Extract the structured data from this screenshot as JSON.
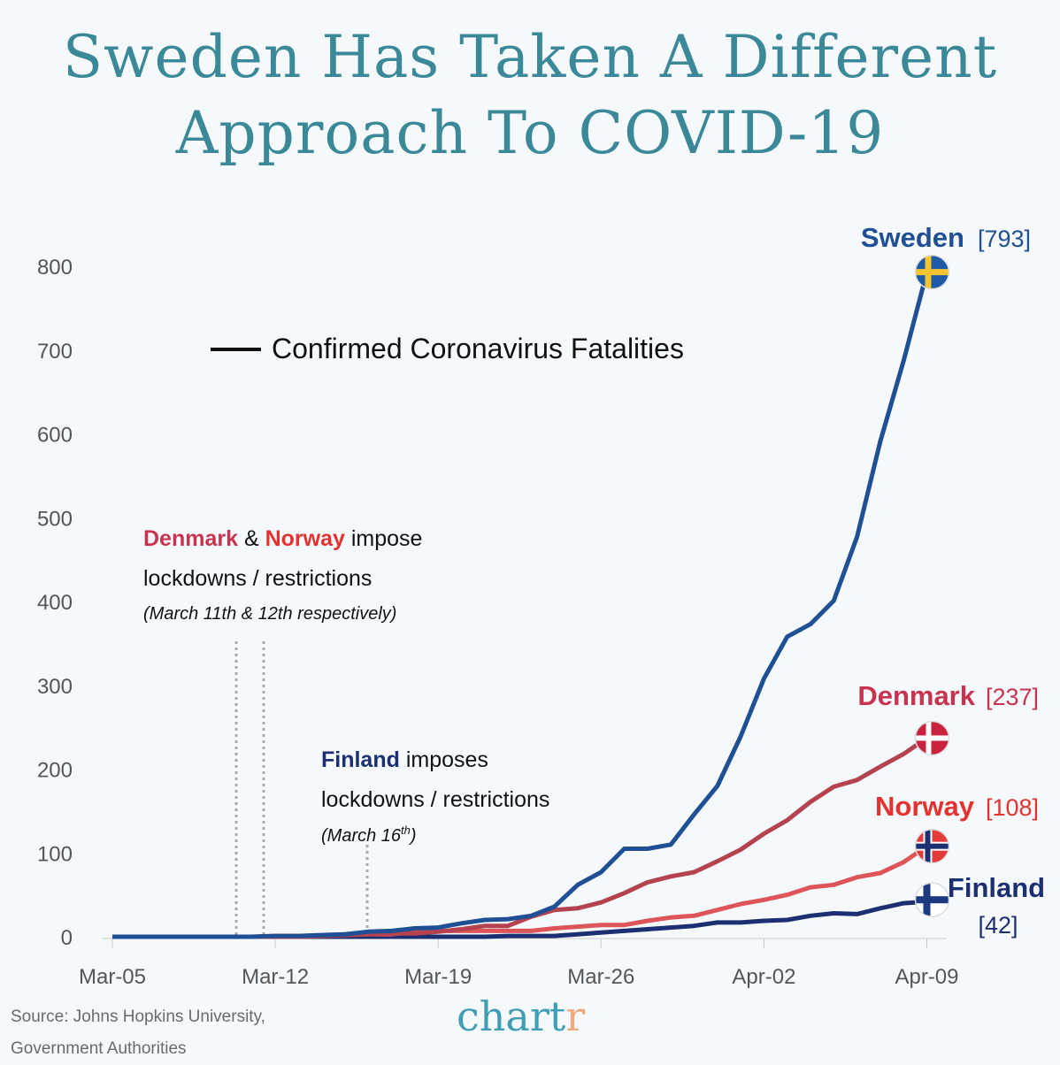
{
  "title_line1": "Sweden Has Taken A Different",
  "title_line2": "Approach To COVID-19",
  "source_line1": "Source: Johns Hopkins University,",
  "source_line2": "Government Authorities",
  "brand": {
    "main": "chart",
    "accent": "r"
  },
  "annotations": {
    "dk_no": {
      "denmark": "Denmark",
      "amp": " & ",
      "norway": "Norway",
      "rest": " impose",
      "line2": "lockdowns / restrictions",
      "note": "(March 11th & 12th respectively)"
    },
    "fi": {
      "finland": "Finland",
      "rest": " imposes",
      "line2": "lockdowns / restrictions",
      "note": "(March 16",
      "note_sup": "th",
      "note_end": ")"
    }
  },
  "chart_data": {
    "type": "line",
    "title": "Sweden Has Taken A Different Approach To COVID-19",
    "legend": {
      "label": "Confirmed Coronavirus Fatalities",
      "placement": "top-left"
    },
    "ylim": [
      0,
      800
    ],
    "yticks": [
      "0",
      "100",
      "200",
      "300",
      "400",
      "500",
      "600",
      "700",
      "800"
    ],
    "xticks": [
      "Mar-05",
      "Mar-12",
      "Mar-19",
      "Mar-26",
      "Apr-02",
      "Apr-09"
    ],
    "grid": false,
    "x": [
      "Mar-05",
      "Mar-06",
      "Mar-07",
      "Mar-08",
      "Mar-09",
      "Mar-10",
      "Mar-11",
      "Mar-12",
      "Mar-13",
      "Mar-14",
      "Mar-15",
      "Mar-16",
      "Mar-17",
      "Mar-18",
      "Mar-19",
      "Mar-20",
      "Mar-21",
      "Mar-22",
      "Mar-23",
      "Mar-24",
      "Mar-25",
      "Mar-26",
      "Mar-27",
      "Mar-28",
      "Mar-29",
      "Mar-30",
      "Mar-31",
      "Apr-01",
      "Apr-02",
      "Apr-03",
      "Apr-04",
      "Apr-05",
      "Apr-06",
      "Apr-07",
      "Apr-08",
      "Apr-09"
    ],
    "series": [
      {
        "name": "Sweden",
        "final": "[793]",
        "color": "#1f4f94",
        "flag": "sweden-flag",
        "values": [
          0,
          0,
          0,
          0,
          0,
          0,
          0,
          1,
          1,
          2,
          3,
          6,
          7,
          10,
          11,
          16,
          20,
          21,
          25,
          36,
          62,
          77,
          105,
          105,
          110,
          146,
          180,
          239,
          308,
          358,
          373,
          401,
          477,
          591,
          687,
          793
        ]
      },
      {
        "name": "Denmark",
        "final": "[237]",
        "color": "#b4434f",
        "label_color": "#c8344f",
        "flag": "denmark-flag",
        "values": [
          0,
          0,
          0,
          0,
          0,
          0,
          0,
          0,
          0,
          1,
          2,
          3,
          4,
          4,
          6,
          9,
          13,
          13,
          24,
          32,
          34,
          41,
          52,
          65,
          72,
          77,
          90,
          104,
          123,
          139,
          161,
          179,
          187,
          203,
          218,
          237
        ]
      },
      {
        "name": "Norway",
        "final": "[108]",
        "color": "#dd5558",
        "label_color": "#e5322f",
        "flag": "norway-flag",
        "values": [
          0,
          0,
          0,
          0,
          0,
          0,
          0,
          1,
          1,
          1,
          3,
          3,
          3,
          6,
          7,
          7,
          7,
          7,
          7,
          10,
          12,
          14,
          14,
          19,
          23,
          25,
          32,
          39,
          44,
          50,
          59,
          62,
          71,
          76,
          89,
          108
        ]
      },
      {
        "name": "Finland",
        "final": "[42]",
        "color": "#1c2f72",
        "flag": "finland-flag",
        "values": [
          0,
          0,
          0,
          0,
          0,
          0,
          0,
          0,
          0,
          0,
          0,
          0,
          0,
          0,
          0,
          0,
          0,
          1,
          1,
          1,
          3,
          5,
          7,
          9,
          11,
          13,
          17,
          17,
          19,
          20,
          25,
          28,
          27,
          34,
          40,
          42
        ]
      }
    ]
  }
}
